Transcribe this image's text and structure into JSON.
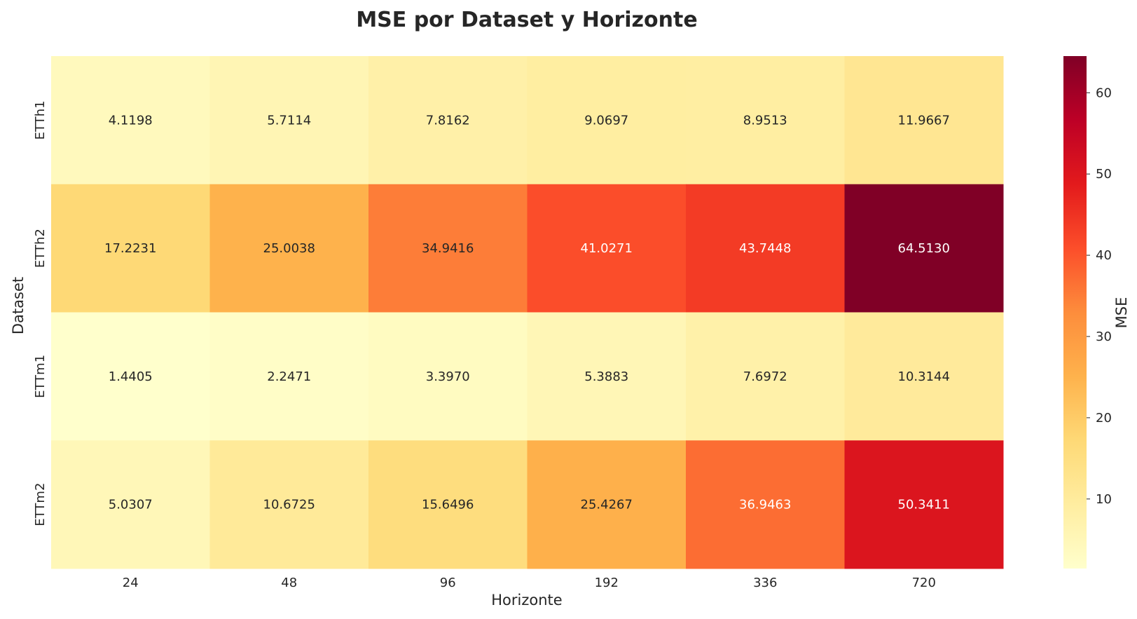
{
  "chart_data": {
    "type": "heatmap",
    "title": "MSE por Dataset y Horizonte",
    "xlabel": "Horizonte",
    "ylabel": "Dataset",
    "x_categories": [
      "24",
      "48",
      "96",
      "192",
      "336",
      "720"
    ],
    "y_categories": [
      "ETTh1",
      "ETTh2",
      "ETTm1",
      "ETTm2"
    ],
    "values": [
      [
        4.1198,
        5.7114,
        7.8162,
        9.0697,
        8.9513,
        11.9667
      ],
      [
        17.2231,
        25.0038,
        34.9416,
        41.0271,
        43.7448,
        64.513
      ],
      [
        1.4405,
        2.2471,
        3.397,
        5.3883,
        7.6972,
        10.3144
      ],
      [
        5.0307,
        10.6725,
        15.6496,
        25.4267,
        36.9463,
        50.3411
      ]
    ],
    "value_labels": [
      [
        "4.1198",
        "5.7114",
        "7.8162",
        "9.0697",
        "8.9513",
        "11.9667"
      ],
      [
        "17.2231",
        "25.0038",
        "34.9416",
        "41.0271",
        "43.7448",
        "64.5130"
      ],
      [
        "1.4405",
        "2.2471",
        "3.3970",
        "5.3883",
        "7.6972",
        "10.3144"
      ],
      [
        "5.0307",
        "10.6725",
        "15.6496",
        "25.4267",
        "36.9463",
        "50.3411"
      ]
    ],
    "colorbar": {
      "label": "MSE",
      "colormap": "YlOrRd",
      "vmin": 1.4405,
      "vmax": 64.513,
      "ticks": [
        10,
        20,
        30,
        40,
        50,
        60
      ],
      "tick_labels": [
        "10",
        "20",
        "30",
        "40",
        "50",
        "60"
      ]
    },
    "grid": false,
    "legend": "colorbar-right"
  }
}
